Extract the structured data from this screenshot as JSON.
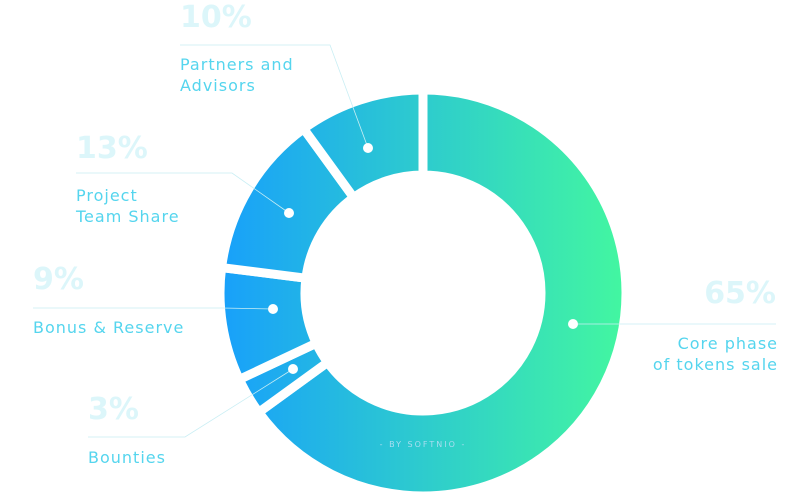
{
  "chart_data": {
    "type": "pie",
    "donut": true,
    "categories": [
      "Core phase\nof tokens sale",
      "Bounties",
      "Bonus & Reserve",
      "Project\nTeam Share",
      "Partners and\nAdvisors"
    ],
    "values": [
      65,
      3,
      9,
      13,
      10
    ],
    "value_labels": [
      "65%",
      "3%",
      "9%",
      "13%",
      "10%"
    ],
    "gradient": [
      "#18a0fb",
      "#43f7a0"
    ],
    "watermark": "- BY SOFTNIO -"
  }
}
